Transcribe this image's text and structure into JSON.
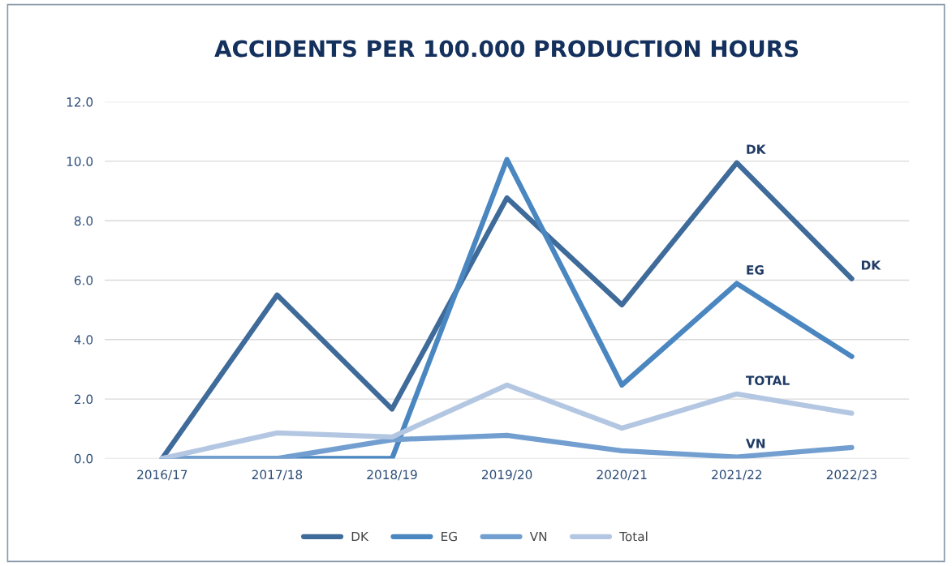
{
  "chart_data": {
    "type": "line",
    "title": "ACCIDENTS PER 100.000 PRODUCTION HOURS",
    "categories": [
      "2016/17",
      "2017/18",
      "2018/19",
      "2019/20",
      "2020/21",
      "2021/22",
      "2022/23"
    ],
    "series": [
      {
        "name": "DK",
        "color": "#3f6b9a",
        "values": [
          0,
          5.5,
          1.66,
          8.77,
          5.17,
          9.95,
          6.05
        ]
      },
      {
        "name": "EG",
        "color": "#4a86c0",
        "values": [
          0,
          0,
          0,
          10.06,
          2.47,
          5.89,
          3.43
        ]
      },
      {
        "name": "VN",
        "color": "#729fd0",
        "values": [
          0,
          0,
          0.63,
          0.78,
          0.26,
          0.05,
          0.37
        ]
      },
      {
        "name": "Total",
        "color": "#b4c7e2",
        "values": [
          0,
          0.86,
          0.72,
          2.47,
          1.02,
          2.17,
          1.52
        ]
      }
    ],
    "ylim": [
      0,
      12
    ],
    "yticks": [
      {
        "value": 0,
        "label": "0.0"
      },
      {
        "value": 2,
        "label": "2.0"
      },
      {
        "value": 4,
        "label": "4.0"
      },
      {
        "value": 6,
        "label": "6.0"
      },
      {
        "value": 8,
        "label": "8.0"
      },
      {
        "value": 10,
        "label": "10.0"
      },
      {
        "value": 12,
        "label": "12.0"
      }
    ],
    "grid": "y",
    "legend": "bottom",
    "marker": "none",
    "line_style": "solid",
    "annotations": [
      {
        "text": "DK",
        "x": "2021/22",
        "y": 9.95
      },
      {
        "text": "DK",
        "x": "2022/23",
        "y": 6.05
      },
      {
        "text": "EG",
        "x": "2021/22",
        "y": 5.89
      },
      {
        "text": "TOTAL",
        "x": "2021/22",
        "y": 2.17
      },
      {
        "text": "VN",
        "x": "2021/22",
        "y": 0.05
      }
    ]
  }
}
